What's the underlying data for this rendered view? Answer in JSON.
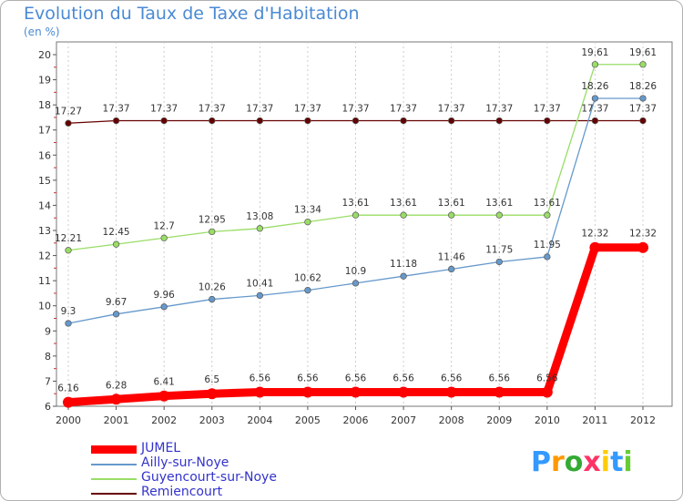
{
  "title": "Evolution du Taux de Taxe d'Habitation",
  "unit": "(en %)",
  "logo": "Proxiti",
  "colors": {
    "title": "#4a8ad4",
    "legend_text": "#3333cc",
    "frame": "#b0b0b0"
  },
  "chart_data": {
    "type": "line",
    "x": [
      "2000",
      "2001",
      "2002",
      "2003",
      "2004",
      "2005",
      "2006",
      "2007",
      "2008",
      "2009",
      "2010",
      "2011",
      "2012"
    ],
    "ylim": [
      6,
      20
    ],
    "yticks": [
      "6",
      "7",
      "8",
      "9",
      "10",
      "11",
      "12",
      "13",
      "14",
      "15",
      "16",
      "17",
      "18",
      "19",
      "20"
    ],
    "grid": "dashed-vertical",
    "legend_position": "bottom-left",
    "series": [
      {
        "name": "JUMEL",
        "color": "#ff0000",
        "values": [
          6.16,
          6.28,
          6.41,
          6.5,
          6.56,
          6.56,
          6.56,
          6.56,
          6.56,
          6.56,
          6.56,
          12.32,
          12.32
        ],
        "labels": [
          "6.16",
          "6.28",
          "6.41",
          "6.5",
          "6.56",
          "6.56",
          "6.56",
          "6.56",
          "6.56",
          "6.56",
          "6.56",
          "12.32",
          "12.32"
        ]
      },
      {
        "name": "Ailly-sur-Noye",
        "color": "#6699cc",
        "values": [
          9.3,
          9.67,
          9.96,
          10.26,
          10.41,
          10.62,
          10.9,
          11.18,
          11.46,
          11.75,
          11.95,
          18.26,
          18.26
        ],
        "labels": [
          "9.3",
          "9.67",
          "9.96",
          "10.26",
          "10.41",
          "10.62",
          "10.9",
          "11.18",
          "11.46",
          "11.75",
          "11.95",
          "18.26",
          "18.26"
        ]
      },
      {
        "name": "Guyencourt-sur-Noye",
        "color": "#99dd66",
        "values": [
          12.21,
          12.45,
          12.7,
          12.95,
          13.08,
          13.34,
          13.61,
          13.61,
          13.61,
          13.61,
          13.61,
          19.61,
          19.61
        ],
        "labels": [
          "12.21",
          "12.45",
          "12.7",
          "12.95",
          "13.08",
          "13.34",
          "13.61",
          "13.61",
          "13.61",
          "13.61",
          "13.61",
          "19.61",
          "19.61"
        ]
      },
      {
        "name": "Remiencourt",
        "color": "#660000",
        "values": [
          17.27,
          17.37,
          17.37,
          17.37,
          17.37,
          17.37,
          17.37,
          17.37,
          17.37,
          17.37,
          17.37,
          17.37,
          17.37
        ],
        "labels": [
          "17.27",
          "17.37",
          "17.37",
          "17.37",
          "17.37",
          "17.37",
          "17.37",
          "17.37",
          "17.37",
          "17.37",
          "17.37",
          "17.37",
          "17.37"
        ]
      }
    ]
  }
}
